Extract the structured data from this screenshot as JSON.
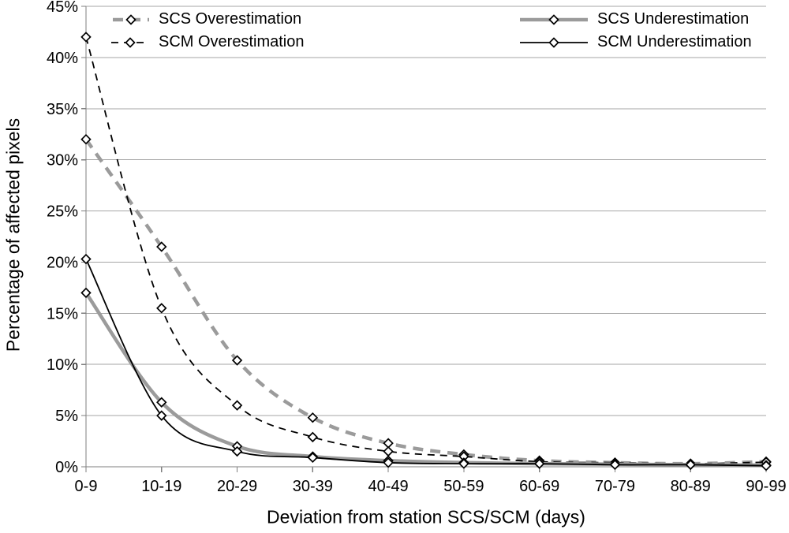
{
  "chart_data": {
    "type": "line",
    "title": "",
    "xlabel": "Deviation from station SCS/SCM (days)",
    "ylabel": "Percentage of affected pixels",
    "categories": [
      "0-9",
      "10-19",
      "20-29",
      "30-39",
      "40-49",
      "50-59",
      "60-69",
      "70-79",
      "80-89",
      "90-99"
    ],
    "yticks": [
      "0%",
      "5%",
      "10%",
      "15%",
      "20%",
      "25%",
      "30%",
      "35%",
      "40%",
      "45%"
    ],
    "ylim": [
      0,
      45
    ],
    "ytick_step": 5,
    "grid": true,
    "smooth": true,
    "legend_position": "top-inside",
    "marker": {
      "shape": "diamond",
      "fill": "#ffffff",
      "stroke": "#000000"
    },
    "axis_color": "#7f7f7f",
    "gridline_color": "#a6a6a6",
    "series": [
      {
        "name": "SCS Overestimation",
        "color": "#9b9b9b",
        "width": 4.5,
        "dash": "13 9",
        "values": [
          32,
          21.5,
          10.4,
          4.8,
          2.3,
          1.2,
          0.6,
          0.4,
          0.3,
          0.5
        ]
      },
      {
        "name": "SCM Overestimation",
        "color": "#000000",
        "width": 1.8,
        "dash": "9 7",
        "values": [
          42,
          15.5,
          6.0,
          2.9,
          1.5,
          1.0,
          0.5,
          0.4,
          0.3,
          0.45
        ]
      },
      {
        "name": "SCS Underestimation",
        "color": "#9b9b9b",
        "width": 4.5,
        "dash": "",
        "values": [
          17,
          6.3,
          2.0,
          1.0,
          0.6,
          0.4,
          0.3,
          0.25,
          0.2,
          0.15
        ]
      },
      {
        "name": "SCM Underestimation",
        "color": "#000000",
        "width": 1.8,
        "dash": "",
        "values": [
          20.3,
          5.0,
          1.5,
          0.9,
          0.4,
          0.3,
          0.3,
          0.2,
          0.2,
          0.1
        ]
      }
    ]
  }
}
